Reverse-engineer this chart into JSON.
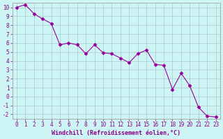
{
  "x": [
    0,
    1,
    2,
    3,
    4,
    5,
    6,
    7,
    8,
    9,
    10,
    11,
    12,
    13,
    14,
    15,
    16,
    17,
    18,
    19,
    20,
    21,
    22,
    23
  ],
  "y": [
    10,
    10.3,
    9.3,
    8.7,
    8.2,
    5.8,
    6.0,
    5.8,
    4.8,
    5.8,
    4.9,
    4.8,
    4.3,
    3.8,
    4.8,
    5.2,
    3.6,
    3.5,
    0.8,
    2.6,
    1.2,
    -1.2,
    -2.2,
    -2.3
  ],
  "line_color": "#990099",
  "marker": "D",
  "marker_size": 2.5,
  "linewidth": 0.8,
  "bg_color": "#cef5f5",
  "grid_color": "#aacccc",
  "xlabel": "Windchill (Refroidissement éolien,°C)",
  "ylabel": "",
  "xlim_min": -0.5,
  "xlim_max": 23.5,
  "ylim_min": -2.5,
  "ylim_max": 10.5,
  "yticks": [
    -2,
    -1,
    0,
    1,
    2,
    3,
    4,
    5,
    6,
    7,
    8,
    9,
    10
  ],
  "xticks": [
    0,
    1,
    2,
    3,
    4,
    5,
    6,
    7,
    8,
    9,
    10,
    11,
    12,
    13,
    14,
    15,
    16,
    17,
    18,
    19,
    20,
    21,
    22,
    23
  ],
  "font_color": "#880088",
  "tick_fontsize": 5.5,
  "xlabel_fontsize": 6.0,
  "spine_color": "#aaaaaa"
}
